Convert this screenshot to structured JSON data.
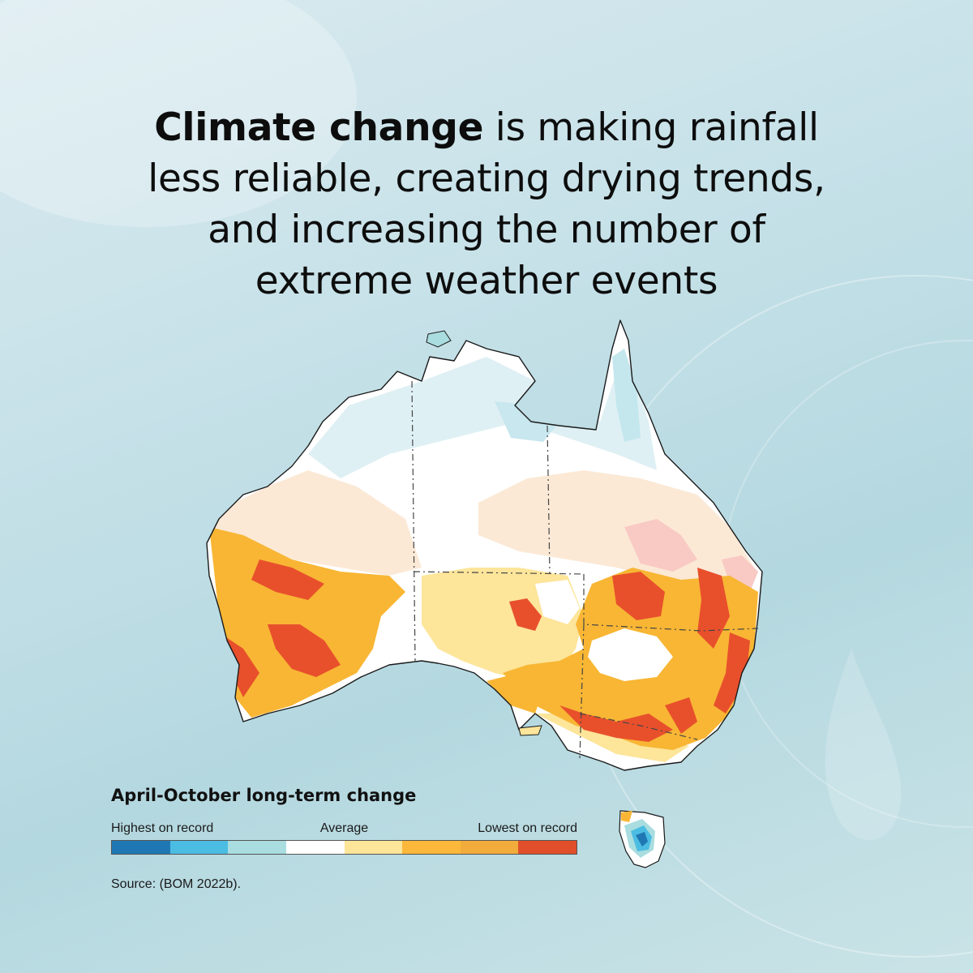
{
  "headline": {
    "line1_bold": "Climate change",
    "line1_rest": " is making rainfall",
    "line2": "less reliable, creating drying trends,",
    "line3": "and increasing the number of",
    "line4": "extreme weather events"
  },
  "legend": {
    "title": "April-October long-term change",
    "label_high": "Highest on record",
    "label_avg": "Average",
    "label_low": "Lowest on record",
    "colors": [
      "#1f78b4",
      "#4cbde2",
      "#a9dde0",
      "#ffffff",
      "#fde59a",
      "#fbb83a",
      "#f2ac3b",
      "#e04e2a"
    ]
  },
  "source": "Source: (BOM 2022b).",
  "map": {
    "region": "Australia",
    "palette": {
      "white": "#ffffff",
      "pale_blue": "#dff0f4",
      "light_blue": "#a9dde0",
      "blue": "#4cbde2",
      "dark_blue": "#1f78b4",
      "cream": "#fbe9d6",
      "pink": "#f9c9c3",
      "pale_yellow": "#fde59a",
      "orange": "#f8b634",
      "red": "#e8502c"
    }
  }
}
